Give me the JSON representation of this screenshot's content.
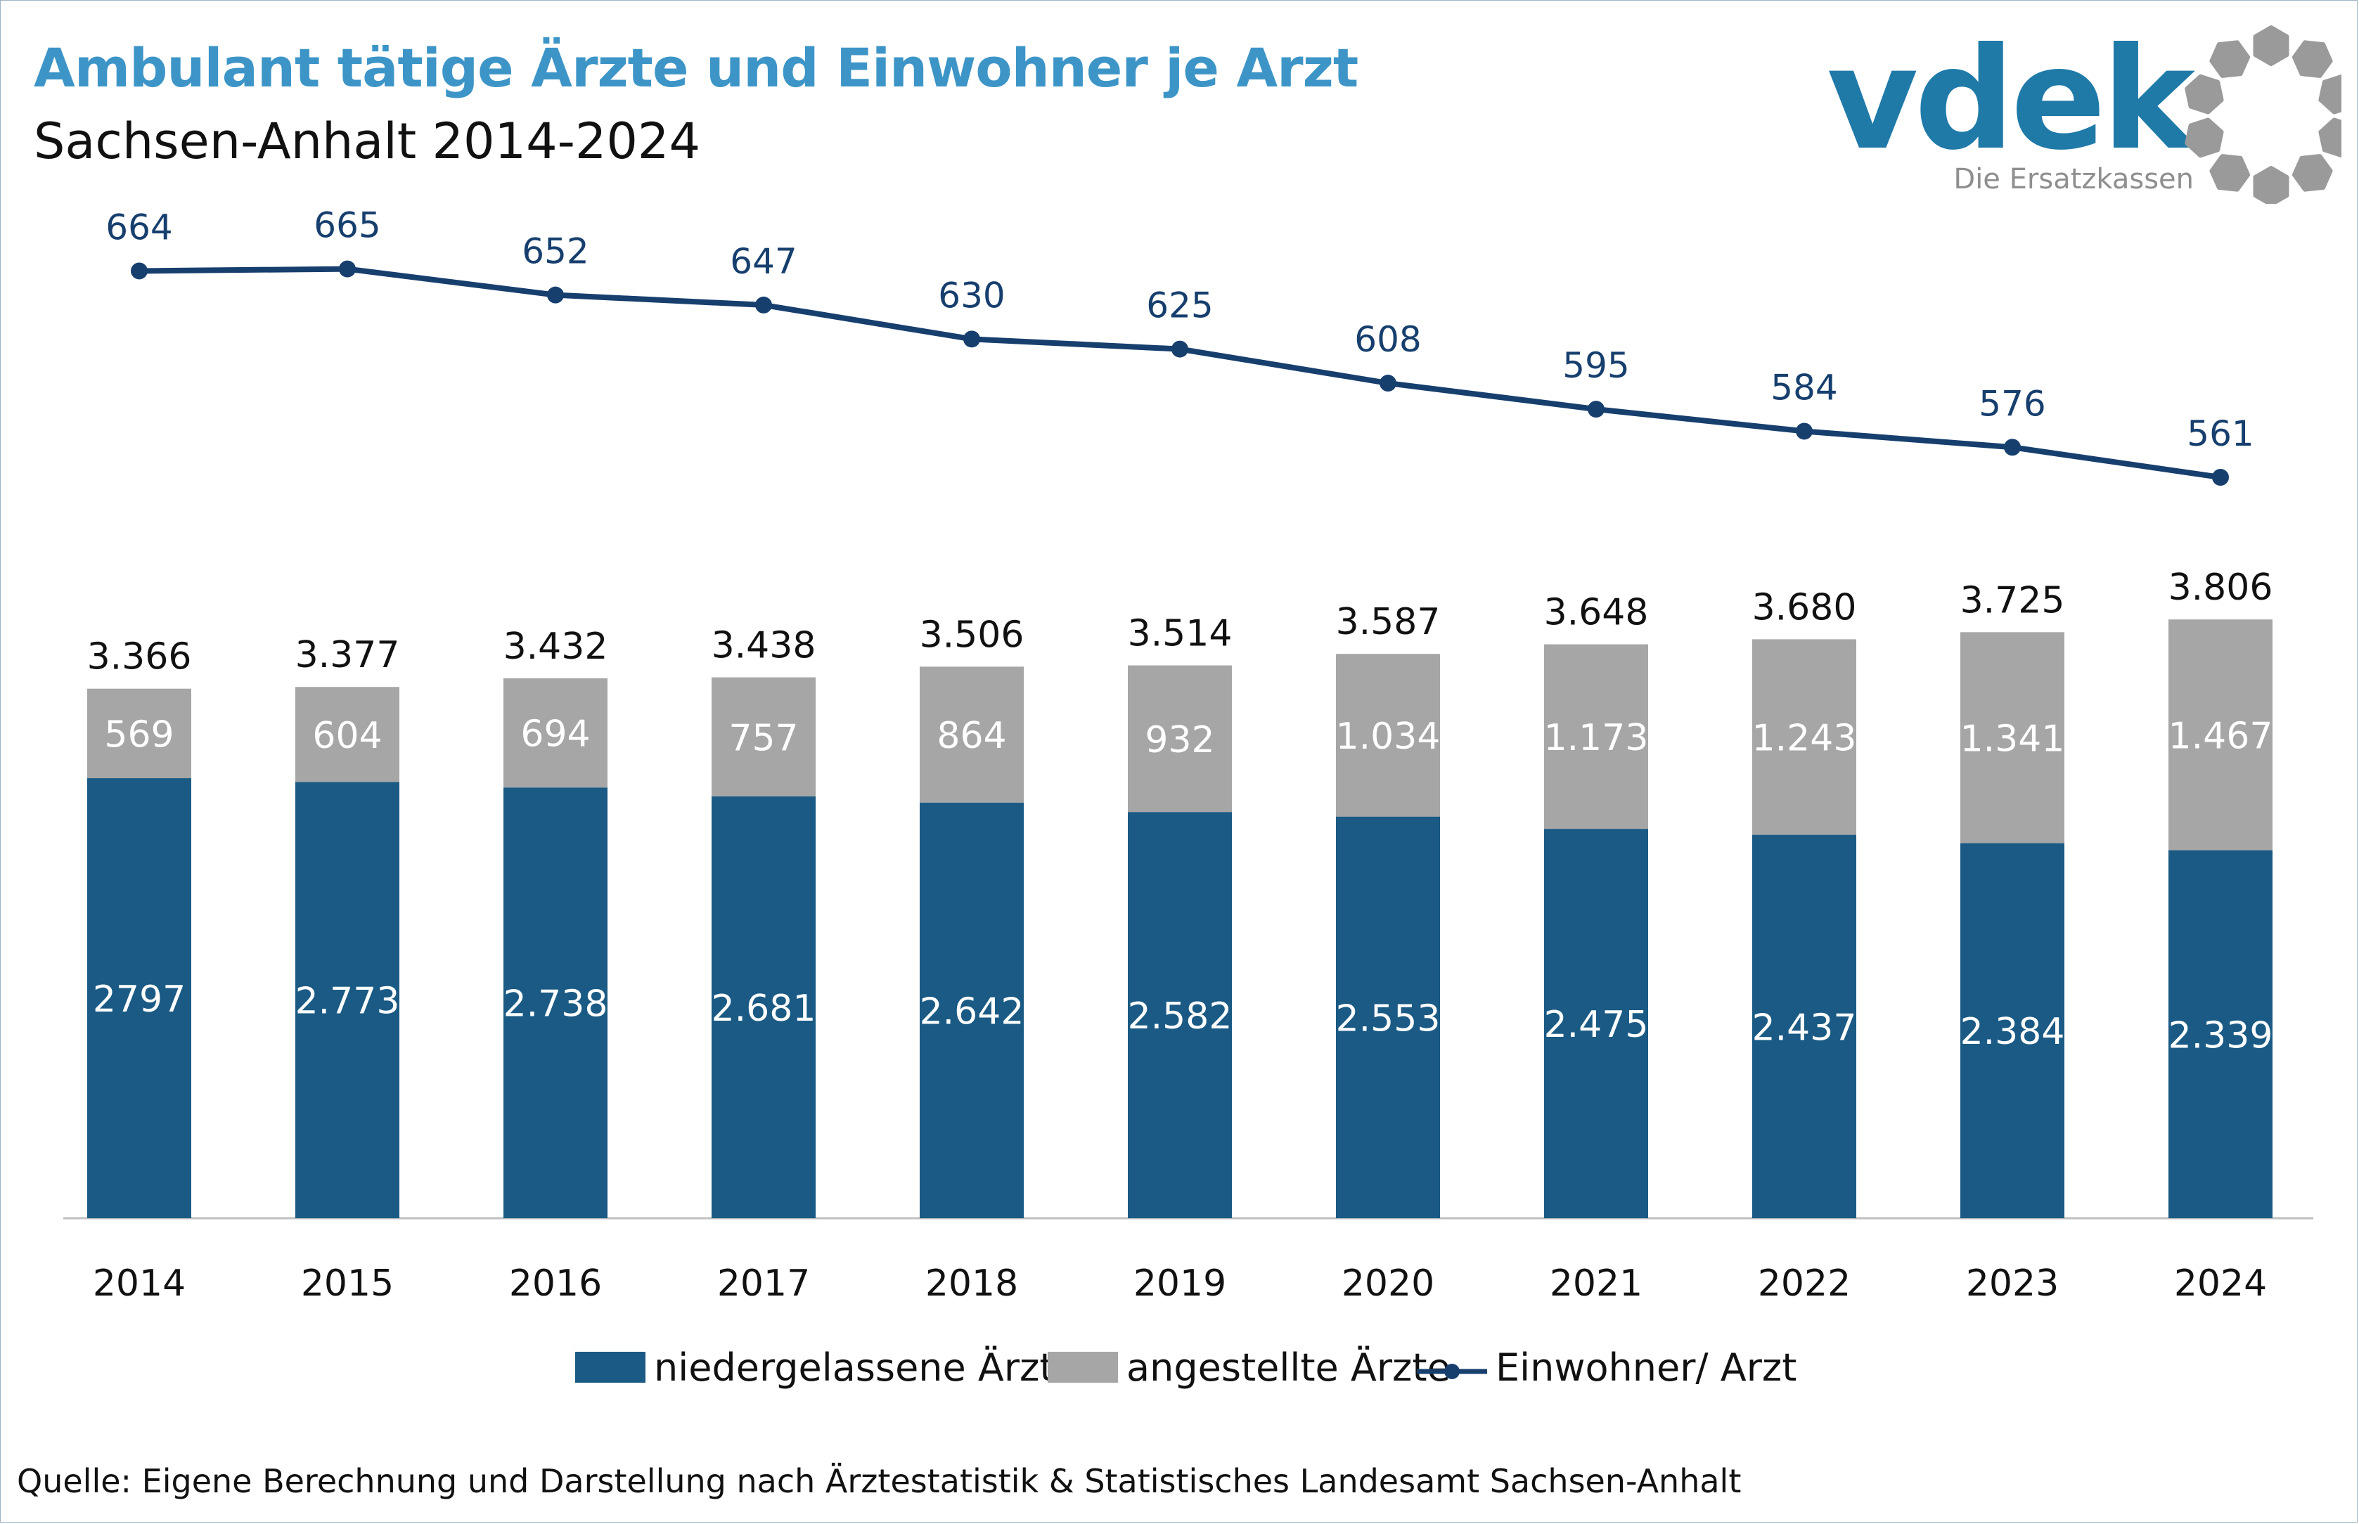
{
  "header": {
    "title": "Ambulant tätige Ärzte und Einwohner je Arzt",
    "subtitle": "Sachsen-Anhalt 2014-2024"
  },
  "logo": {
    "wordmark": "vdek",
    "tagline": "Die Ersatzkassen",
    "color_primary": "#1f7aa8",
    "color_secondary": "#8f8f8f"
  },
  "colors": {
    "bar_bottom": "#1a5a84",
    "bar_top": "#a6a6a6",
    "line": "#173f6e",
    "title": "#3d95c7",
    "axis": "#bfbfbf"
  },
  "chart_data": {
    "type": "bar",
    "stacked": true,
    "categories": [
      "2014",
      "2015",
      "2016",
      "2017",
      "2018",
      "2019",
      "2020",
      "2021",
      "2022",
      "2023",
      "2024"
    ],
    "series": [
      {
        "name": "niedergelassene Ärzte",
        "values": [
          2797,
          2773,
          2738,
          2681,
          2642,
          2582,
          2553,
          2475,
          2437,
          2384,
          2339
        ],
        "labels": [
          "2797",
          "2.773",
          "2.738",
          "2.681",
          "2.642",
          "2.582",
          "2.553",
          "2.475",
          "2.437",
          "2.384",
          "2.339"
        ]
      },
      {
        "name": "angestellte Ärzte",
        "values": [
          569,
          604,
          694,
          757,
          864,
          932,
          1034,
          1173,
          1243,
          1341,
          1467
        ],
        "labels": [
          "569",
          "604",
          "694",
          "757",
          "864",
          "932",
          "1.034",
          "1.173",
          "1.243",
          "1.341",
          "1.467"
        ]
      }
    ],
    "totals": {
      "values": [
        3366,
        3377,
        3432,
        3438,
        3506,
        3514,
        3587,
        3648,
        3680,
        3725,
        3806
      ],
      "labels": [
        "3.366",
        "3.377",
        "3.432",
        "3.438",
        "3.506",
        "3.514",
        "3.587",
        "3.648",
        "3.680",
        "3.725",
        "3.806"
      ]
    },
    "line_series": {
      "name": "Einwohner/ Arzt",
      "type": "line",
      "values": [
        664,
        665,
        652,
        647,
        630,
        625,
        608,
        595,
        584,
        576,
        561
      ],
      "labels": [
        "664",
        "665",
        "652",
        "647",
        "630",
        "625",
        "608",
        "595",
        "584",
        "576",
        "561"
      ]
    },
    "legend_position": "bottom",
    "grid": false
  },
  "legend": {
    "items": [
      "niedergelassene Ärzte",
      "angestellte Ärzte",
      "Einwohner/ Arzt"
    ]
  },
  "source": "Quelle: Eigene Berechnung und Darstellung nach Ärztestatistik & Statistisches Landesamt Sachsen-Anhalt"
}
